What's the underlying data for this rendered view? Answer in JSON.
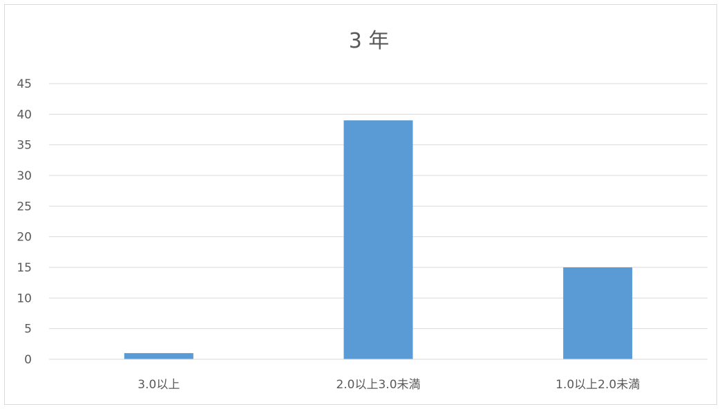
{
  "chart_data": {
    "type": "bar",
    "title": "3 年",
    "categories": [
      "3.0以上",
      "2.0以上3.0未満",
      "1.0以上2.0未満"
    ],
    "series": [
      {
        "values": [
          1,
          39,
          15
        ],
        "color": "#5b9bd5"
      }
    ],
    "ylim": [
      0,
      45
    ],
    "ytick_step": 5,
    "yticks": [
      "0",
      "5",
      "10",
      "15",
      "20",
      "25",
      "30",
      "35",
      "40",
      "45"
    ],
    "grid": true,
    "legend": "none",
    "gridline_color": "#d9d9d9",
    "text_color": "#595959"
  }
}
